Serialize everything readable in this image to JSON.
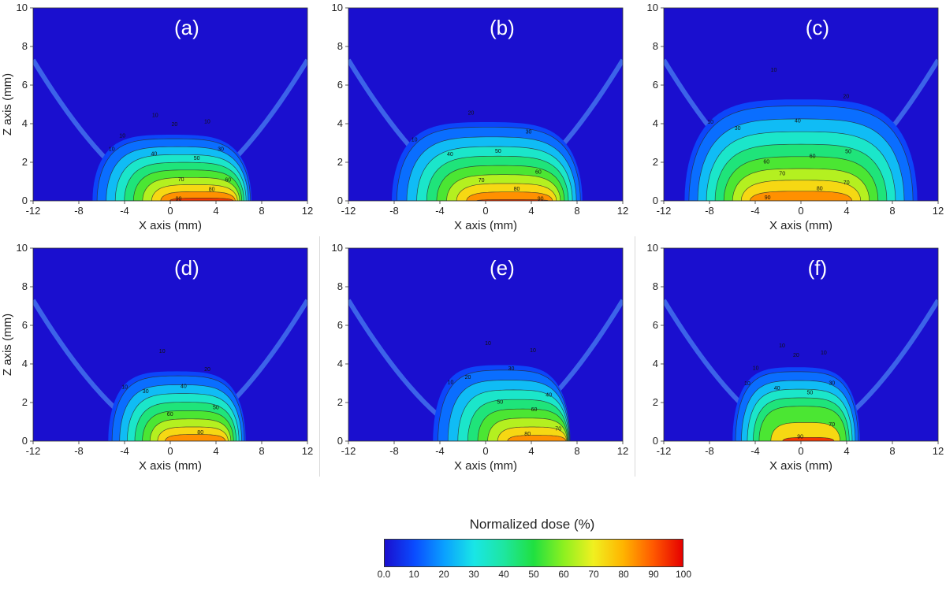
{
  "figure": {
    "panels": [
      {
        "label": "(a)",
        "contour_labels": [
          "10",
          "10",
          "10",
          "10",
          "20",
          "30",
          "40",
          "50",
          "60",
          "70",
          "80",
          "90"
        ]
      },
      {
        "label": "(b)",
        "contour_labels": [
          "10",
          "20",
          "30",
          "40",
          "50",
          "60",
          "70",
          "80",
          "90"
        ]
      },
      {
        "label": "(c)",
        "contour_labels": [
          "10",
          "10",
          "20",
          "30",
          "40",
          "50",
          "60",
          "60",
          "70",
          "70",
          "80",
          "90"
        ]
      },
      {
        "label": "(d)",
        "contour_labels": [
          "10",
          "10",
          "20",
          "30",
          "40",
          "50",
          "60",
          "80"
        ]
      },
      {
        "label": "(e)",
        "contour_labels": [
          "10",
          "10",
          "10",
          "20",
          "30",
          "40",
          "50",
          "60",
          "70",
          "80"
        ]
      },
      {
        "label": "(f)",
        "contour_labels": [
          "10",
          "10",
          "10",
          "10",
          "20",
          "30",
          "40",
          "50",
          "70",
          "90"
        ]
      }
    ],
    "colorbar": {
      "title": "Normalized dose (%)",
      "tick_labels": [
        "0.0",
        "10",
        "20",
        "30",
        "40",
        "50",
        "60",
        "70",
        "80",
        "90",
        "100"
      ],
      "range": [
        0,
        100
      ],
      "colors": [
        "#1a0fcf",
        "#0a4cff",
        "#0aa0ff",
        "#19e6e6",
        "#1ee6a0",
        "#20e040",
        "#8cf020",
        "#f0f020",
        "#ffb400",
        "#ff5a00",
        "#e60000"
      ]
    }
  },
  "chart_data": [
    {
      "type": "heatmap",
      "panel": "(a)",
      "xlabel": "X axis (mm)",
      "ylabel": "Z axis (mm)",
      "xlim": [
        -12,
        12
      ],
      "ylim": [
        0,
        10
      ],
      "xticks": [
        "-12",
        "-8",
        "-4",
        "0",
        "4",
        "8",
        "12"
      ],
      "yticks": [
        "0",
        "2",
        "4",
        "6",
        "8",
        "10"
      ],
      "contour_levels": [
        10,
        20,
        30,
        40,
        50,
        60,
        70,
        80,
        90
      ],
      "value_range": [
        0,
        100
      ],
      "background_value": 0
    },
    {
      "type": "heatmap",
      "panel": "(b)",
      "xlabel": "X axis (mm)",
      "ylabel": "Z axis (mm)",
      "xlim": [
        -12,
        12
      ],
      "ylim": [
        0,
        10
      ],
      "xticks": [
        "-12",
        "-8",
        "-4",
        "0",
        "4",
        "8",
        "12"
      ],
      "yticks": [
        "0",
        "2",
        "4",
        "6",
        "8",
        "10"
      ],
      "contour_levels": [
        10,
        20,
        30,
        40,
        50,
        60,
        70,
        80,
        90
      ],
      "value_range": [
        0,
        100
      ],
      "background_value": 0
    },
    {
      "type": "heatmap",
      "panel": "(c)",
      "xlabel": "X axis (mm)",
      "ylabel": "Z axis (mm)",
      "xlim": [
        -12,
        12
      ],
      "ylim": [
        0,
        10
      ],
      "xticks": [
        "-12",
        "-8",
        "-4",
        "0",
        "4",
        "8",
        "12"
      ],
      "yticks": [
        "0",
        "2",
        "4",
        "6",
        "8",
        "10"
      ],
      "contour_levels": [
        10,
        20,
        30,
        40,
        50,
        60,
        70,
        80,
        90
      ],
      "value_range": [
        0,
        100
      ],
      "background_value": 0
    },
    {
      "type": "heatmap",
      "panel": "(d)",
      "xlabel": "X axis (mm)",
      "ylabel": "Z axis (mm)",
      "xlim": [
        -12,
        12
      ],
      "ylim": [
        0,
        10
      ],
      "xticks": [
        "-12",
        "-8",
        "-4",
        "0",
        "4",
        "8",
        "12"
      ],
      "yticks": [
        "0",
        "2",
        "4",
        "6",
        "8",
        "10"
      ],
      "contour_levels": [
        10,
        20,
        30,
        40,
        50,
        60,
        70,
        80
      ],
      "value_range": [
        0,
        100
      ],
      "background_value": 0
    },
    {
      "type": "heatmap",
      "panel": "(e)",
      "xlabel": "X axis (mm)",
      "ylabel": "Z axis (mm)",
      "xlim": [
        -12,
        12
      ],
      "ylim": [
        0,
        10
      ],
      "xticks": [
        "-12",
        "-8",
        "-4",
        "0",
        "4",
        "8",
        "12"
      ],
      "yticks": [
        "0",
        "2",
        "4",
        "6",
        "8",
        "10"
      ],
      "contour_levels": [
        10,
        20,
        30,
        40,
        50,
        60,
        70,
        80
      ],
      "value_range": [
        0,
        100
      ],
      "background_value": 0
    },
    {
      "type": "heatmap",
      "panel": "(f)",
      "xlabel": "X axis (mm)",
      "ylabel": "Z axis (mm)",
      "xlim": [
        -12,
        12
      ],
      "ylim": [
        0,
        10
      ],
      "xticks": [
        "-12",
        "-8",
        "-4",
        "0",
        "4",
        "8",
        "12"
      ],
      "yticks": [
        "0",
        "2",
        "4",
        "6",
        "8",
        "10"
      ],
      "contour_levels": [
        10,
        20,
        30,
        40,
        50,
        70,
        90
      ],
      "value_range": [
        0,
        100
      ],
      "background_value": 0
    }
  ]
}
